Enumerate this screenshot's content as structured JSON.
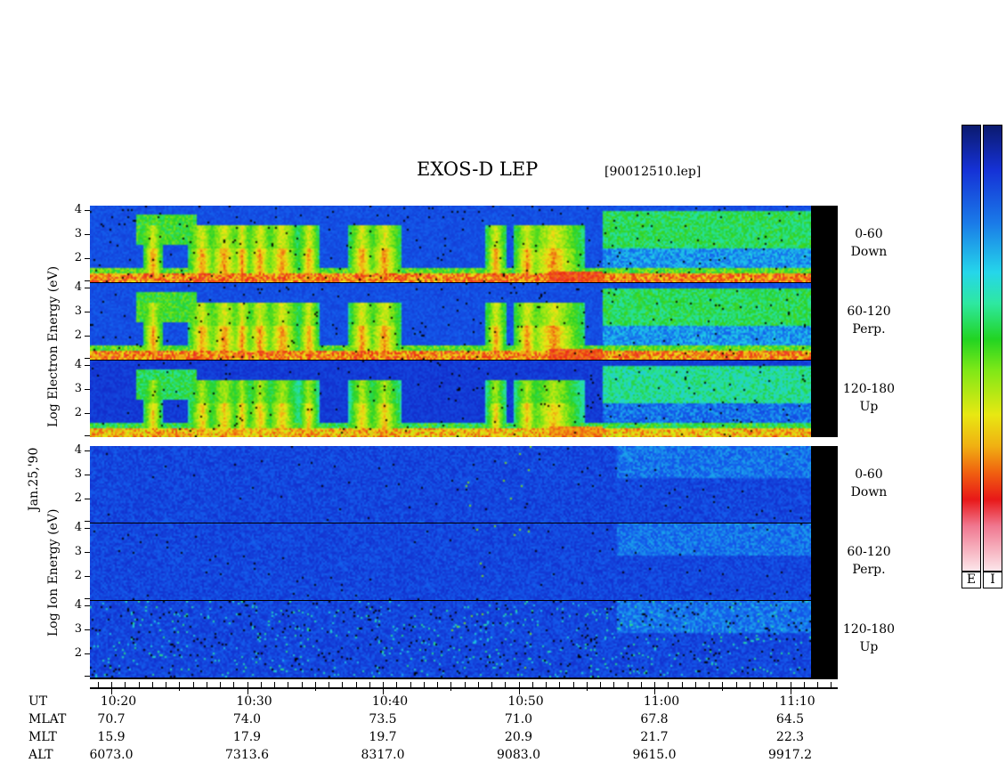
{
  "chart_data": {
    "type": "heatmap",
    "title": "EXOS-D LEP",
    "file_label": "[90012510.lep]",
    "date_label": "Jan.25,'90",
    "groups": [
      {
        "name": "electron",
        "ylabel": "Log Electron Energy (eV)",
        "panels": [
          {
            "label_1": "0-60",
            "label_2": "Down",
            "yticks": [
              "4",
              "3",
              "2"
            ]
          },
          {
            "label_1": "60-120",
            "label_2": "Perp.",
            "yticks": [
              "4",
              "3",
              "2"
            ]
          },
          {
            "label_1": "120-180",
            "label_2": "Up",
            "yticks": [
              "4",
              "3",
              "2"
            ]
          }
        ]
      },
      {
        "name": "ion",
        "ylabel": "Log Ion Energy (eV)",
        "panels": [
          {
            "label_1": "0-60",
            "label_2": "Down",
            "yticks": [
              "4",
              "3",
              "2"
            ]
          },
          {
            "label_1": "60-120",
            "label_2": "Perp.",
            "yticks": [
              "4",
              "3",
              "2"
            ]
          },
          {
            "label_1": "120-180",
            "label_2": "Up",
            "yticks": [
              "4",
              "3",
              "2"
            ]
          }
        ]
      }
    ],
    "ylim": [
      1,
      4.2
    ],
    "x_axis": {
      "row_labels": [
        "UT",
        "MLAT",
        "MLT",
        "ALT"
      ],
      "ticks": [
        {
          "UT": "10:20",
          "MLAT": "70.7",
          "MLT": "15.9",
          "ALT": "6073.0"
        },
        {
          "UT": "10:30",
          "MLAT": "74.0",
          "MLT": "17.9",
          "ALT": "7313.6"
        },
        {
          "UT": "10:40",
          "MLAT": "73.5",
          "MLT": "19.7",
          "ALT": "8317.0"
        },
        {
          "UT": "10:50",
          "MLAT": "71.0",
          "MLT": "20.9",
          "ALT": "9083.0"
        },
        {
          "UT": "11:00",
          "MLAT": "67.8",
          "MLT": "21.7",
          "ALT": "9615.0"
        },
        {
          "UT": "11:10",
          "MLAT": "64.5",
          "MLT": "22.3",
          "ALT": "9917.2"
        }
      ]
    },
    "colorbars": [
      {
        "label": "E"
      },
      {
        "label": "I"
      }
    ]
  }
}
